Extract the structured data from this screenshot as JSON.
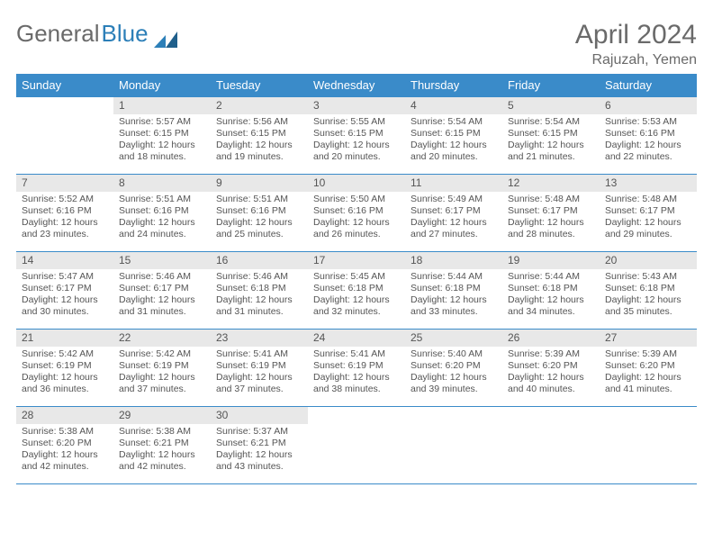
{
  "logo": {
    "word1": "General",
    "word2": "Blue"
  },
  "title": "April 2024",
  "location": "Rajuzah, Yemen",
  "colors": {
    "header_bg": "#3a8bc9",
    "header_text": "#ffffff",
    "daynum_bg": "#e8e8e8",
    "border": "#3a8bc9",
    "text": "#555555",
    "logo_blue": "#2c7fb8"
  },
  "weekdays": [
    "Sunday",
    "Monday",
    "Tuesday",
    "Wednesday",
    "Thursday",
    "Friday",
    "Saturday"
  ],
  "days": [
    {
      "n": 1,
      "sunrise": "5:57 AM",
      "sunset": "6:15 PM",
      "daylight": "12 hours and 18 minutes."
    },
    {
      "n": 2,
      "sunrise": "5:56 AM",
      "sunset": "6:15 PM",
      "daylight": "12 hours and 19 minutes."
    },
    {
      "n": 3,
      "sunrise": "5:55 AM",
      "sunset": "6:15 PM",
      "daylight": "12 hours and 20 minutes."
    },
    {
      "n": 4,
      "sunrise": "5:54 AM",
      "sunset": "6:15 PM",
      "daylight": "12 hours and 20 minutes."
    },
    {
      "n": 5,
      "sunrise": "5:54 AM",
      "sunset": "6:15 PM",
      "daylight": "12 hours and 21 minutes."
    },
    {
      "n": 6,
      "sunrise": "5:53 AM",
      "sunset": "6:16 PM",
      "daylight": "12 hours and 22 minutes."
    },
    {
      "n": 7,
      "sunrise": "5:52 AM",
      "sunset": "6:16 PM",
      "daylight": "12 hours and 23 minutes."
    },
    {
      "n": 8,
      "sunrise": "5:51 AM",
      "sunset": "6:16 PM",
      "daylight": "12 hours and 24 minutes."
    },
    {
      "n": 9,
      "sunrise": "5:51 AM",
      "sunset": "6:16 PM",
      "daylight": "12 hours and 25 minutes."
    },
    {
      "n": 10,
      "sunrise": "5:50 AM",
      "sunset": "6:16 PM",
      "daylight": "12 hours and 26 minutes."
    },
    {
      "n": 11,
      "sunrise": "5:49 AM",
      "sunset": "6:17 PM",
      "daylight": "12 hours and 27 minutes."
    },
    {
      "n": 12,
      "sunrise": "5:48 AM",
      "sunset": "6:17 PM",
      "daylight": "12 hours and 28 minutes."
    },
    {
      "n": 13,
      "sunrise": "5:48 AM",
      "sunset": "6:17 PM",
      "daylight": "12 hours and 29 minutes."
    },
    {
      "n": 14,
      "sunrise": "5:47 AM",
      "sunset": "6:17 PM",
      "daylight": "12 hours and 30 minutes."
    },
    {
      "n": 15,
      "sunrise": "5:46 AM",
      "sunset": "6:17 PM",
      "daylight": "12 hours and 31 minutes."
    },
    {
      "n": 16,
      "sunrise": "5:46 AM",
      "sunset": "6:18 PM",
      "daylight": "12 hours and 31 minutes."
    },
    {
      "n": 17,
      "sunrise": "5:45 AM",
      "sunset": "6:18 PM",
      "daylight": "12 hours and 32 minutes."
    },
    {
      "n": 18,
      "sunrise": "5:44 AM",
      "sunset": "6:18 PM",
      "daylight": "12 hours and 33 minutes."
    },
    {
      "n": 19,
      "sunrise": "5:44 AM",
      "sunset": "6:18 PM",
      "daylight": "12 hours and 34 minutes."
    },
    {
      "n": 20,
      "sunrise": "5:43 AM",
      "sunset": "6:18 PM",
      "daylight": "12 hours and 35 minutes."
    },
    {
      "n": 21,
      "sunrise": "5:42 AM",
      "sunset": "6:19 PM",
      "daylight": "12 hours and 36 minutes."
    },
    {
      "n": 22,
      "sunrise": "5:42 AM",
      "sunset": "6:19 PM",
      "daylight": "12 hours and 37 minutes."
    },
    {
      "n": 23,
      "sunrise": "5:41 AM",
      "sunset": "6:19 PM",
      "daylight": "12 hours and 37 minutes."
    },
    {
      "n": 24,
      "sunrise": "5:41 AM",
      "sunset": "6:19 PM",
      "daylight": "12 hours and 38 minutes."
    },
    {
      "n": 25,
      "sunrise": "5:40 AM",
      "sunset": "6:20 PM",
      "daylight": "12 hours and 39 minutes."
    },
    {
      "n": 26,
      "sunrise": "5:39 AM",
      "sunset": "6:20 PM",
      "daylight": "12 hours and 40 minutes."
    },
    {
      "n": 27,
      "sunrise": "5:39 AM",
      "sunset": "6:20 PM",
      "daylight": "12 hours and 41 minutes."
    },
    {
      "n": 28,
      "sunrise": "5:38 AM",
      "sunset": "6:20 PM",
      "daylight": "12 hours and 42 minutes."
    },
    {
      "n": 29,
      "sunrise": "5:38 AM",
      "sunset": "6:21 PM",
      "daylight": "12 hours and 42 minutes."
    },
    {
      "n": 30,
      "sunrise": "5:37 AM",
      "sunset": "6:21 PM",
      "daylight": "12 hours and 43 minutes."
    }
  ],
  "labels": {
    "sunrise": "Sunrise:",
    "sunset": "Sunset:",
    "daylight": "Daylight:"
  },
  "layout": {
    "start_weekday": 1,
    "weeks": 5,
    "columns": 7
  }
}
